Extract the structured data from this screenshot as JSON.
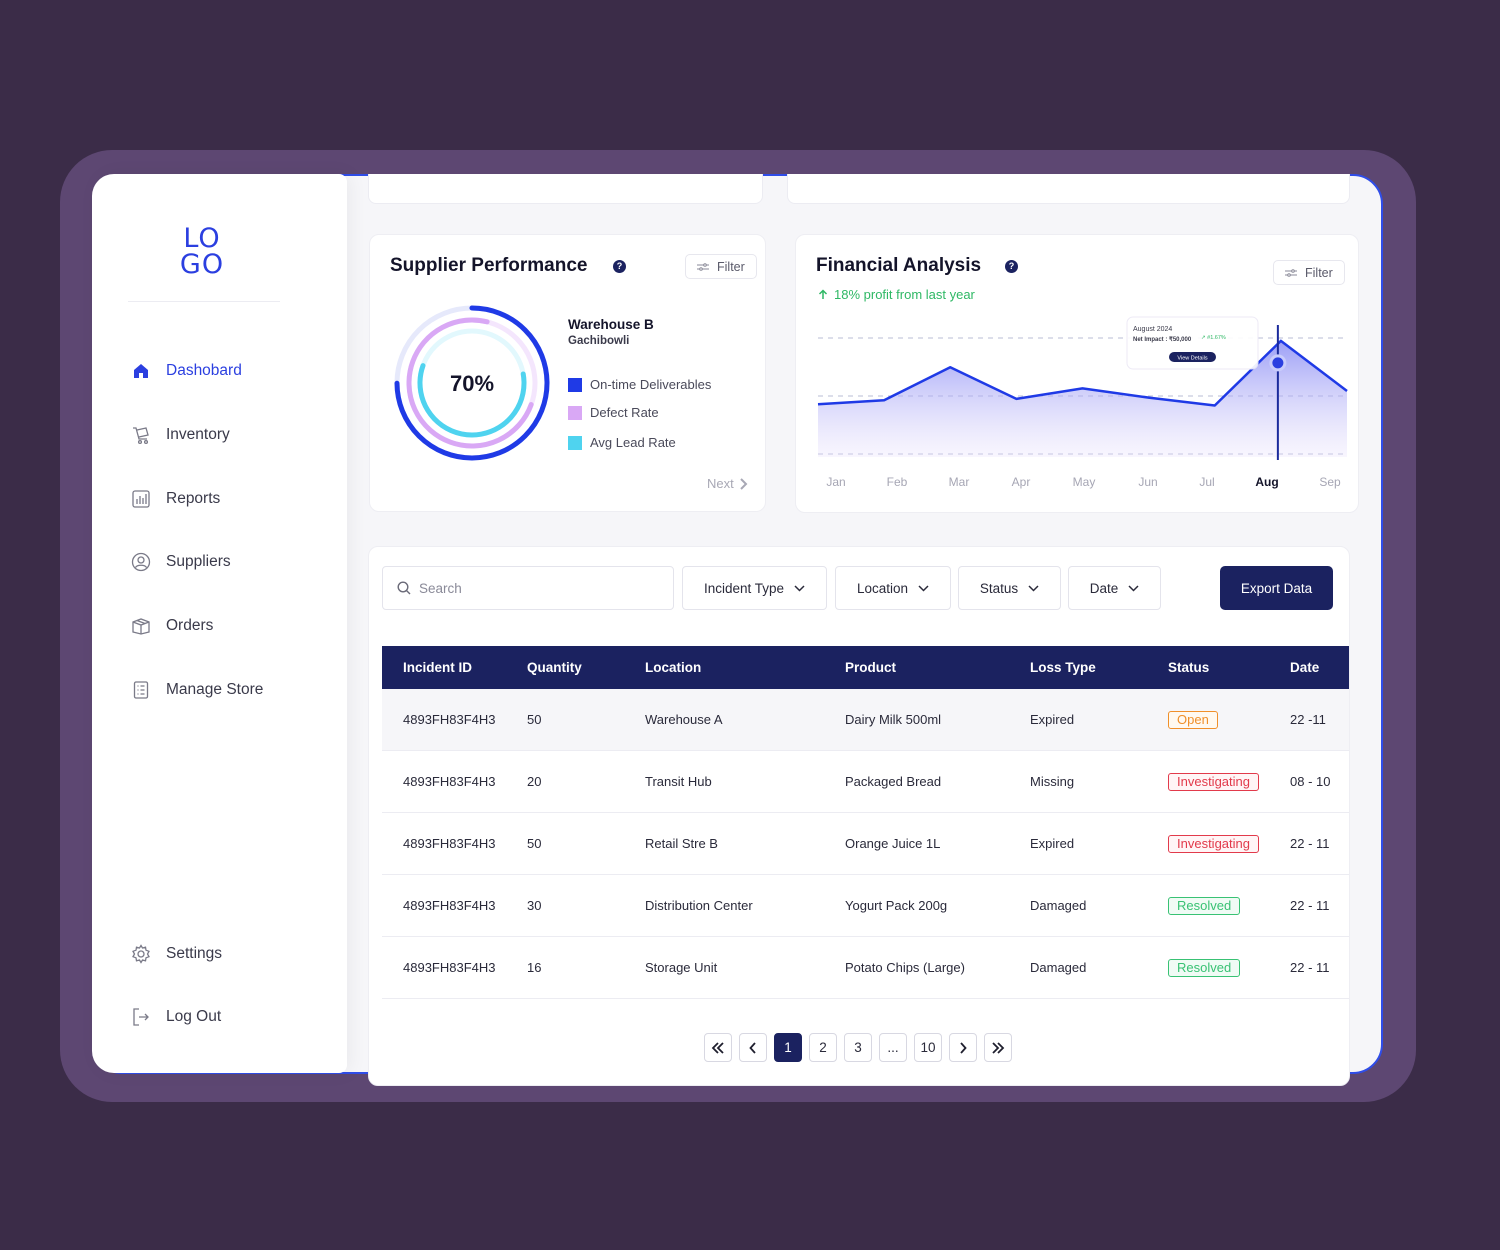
{
  "sidebar": {
    "logo_line1": "LO",
    "logo_line2": "GO",
    "items": [
      {
        "label": "Dashobard",
        "icon": "home-icon"
      },
      {
        "label": "Inventory",
        "icon": "cart-icon"
      },
      {
        "label": "Reports",
        "icon": "bar-chart-icon"
      },
      {
        "label": "Suppliers",
        "icon": "user-circle-icon"
      },
      {
        "label": "Orders",
        "icon": "box-icon"
      },
      {
        "label": "Manage Store",
        "icon": "clipboard-icon"
      }
    ],
    "settings_label": "Settings",
    "logout_label": "Log Out"
  },
  "supplier": {
    "title": "Supplier Performance",
    "filter_label": "Filter",
    "percent": "70%",
    "warehouse": "Warehouse B",
    "location": "Gachibowli",
    "legend": [
      {
        "label": "On-time Deliverables",
        "color": "#1f3ae6"
      },
      {
        "label": "Defect Rate",
        "color": "#d9a8f5"
      },
      {
        "label": "Avg Lead Rate",
        "color": "#4fd3ef"
      }
    ],
    "next_label": "Next"
  },
  "financial": {
    "title": "Financial Analysis",
    "filter_label": "Filter",
    "profit_text": "18% profit from last year",
    "tooltip_title": "August 2024",
    "tooltip_impact": "Net Impact : ₹50,000",
    "tooltip_change": "↗ #1.67%",
    "tooltip_button": "View Details",
    "active_month": "Aug"
  },
  "chart_data": {
    "type": "area",
    "categories": [
      "Jan",
      "Feb",
      "Mar",
      "Apr",
      "May",
      "Jun",
      "Jul",
      "Aug",
      "Sep"
    ],
    "series": [
      {
        "values": [
          40,
          43,
          68,
          44,
          52,
          45,
          39,
          88,
          50
        ]
      }
    ],
    "highlight": "Aug",
    "grid": "dashed horizontal",
    "ylim": [
      0,
      100
    ]
  },
  "toolbar": {
    "search_placeholder": "Search",
    "filters": [
      "Incident Type",
      "Location",
      "Status",
      "Date"
    ],
    "export_label": "Export Data"
  },
  "table": {
    "headers": [
      "Incident ID",
      "Quantity",
      "Location",
      "Product",
      "Loss Type",
      "Status",
      "Date"
    ],
    "rows": [
      {
        "id": "4893FH83F4H3",
        "qty": "50",
        "location": "Warehouse A",
        "product": "Dairy Milk 500ml",
        "loss": "Expired",
        "status": "Open",
        "date": "22  -11"
      },
      {
        "id": "4893FH83F4H3",
        "qty": "20",
        "location": "Transit Hub",
        "product": "Packaged Bread",
        "loss": "Missing",
        "status": "Investigating",
        "date": "08 - 10"
      },
      {
        "id": "4893FH83F4H3",
        "qty": "50",
        "location": "Retail Stre B",
        "product": "Orange Juice 1L",
        "loss": "Expired",
        "status": "Investigating",
        "date": "22  - 11"
      },
      {
        "id": "4893FH83F4H3",
        "qty": "30",
        "location": "Distribution Center",
        "product": "Yogurt Pack 200g",
        "loss": "Damaged",
        "status": "Resolved",
        "date": "22 - 11"
      },
      {
        "id": "4893FH83F4H3",
        "qty": "16",
        "location": "Storage Unit",
        "product": "Potato Chips (Large)",
        "loss": "Damaged",
        "status": "Resolved",
        "date": "22 - 11"
      }
    ]
  },
  "pagination": {
    "pages": [
      "1",
      "2",
      "3",
      "...",
      "10"
    ],
    "active": "1"
  }
}
